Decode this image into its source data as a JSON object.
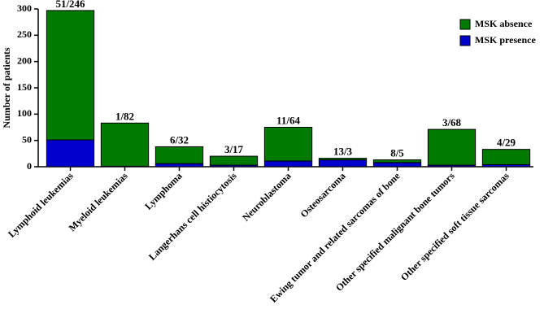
{
  "chart_data": {
    "type": "stacked-bar",
    "y_label": "Number of patients",
    "categories": [
      "Lymphoid leukemias",
      "Myeloid leukemias",
      "Lymphoma",
      "Langerhans cell histiocytosis",
      "Neuroblastoma",
      "Osteosarcoma",
      "Ewing tumor and related sarcomas of bone",
      "Other specified malignant bone tumors",
      "Other specified soft tissue sarcomas"
    ],
    "series": [
      {
        "name": "MSK presence",
        "color": "#0000cc",
        "values": [
          51,
          1,
          6,
          3,
          11,
          13,
          8,
          3,
          4
        ]
      },
      {
        "name": "MSK absence",
        "color": "#007a00",
        "values": [
          246,
          82,
          32,
          17,
          64,
          3,
          5,
          68,
          29
        ]
      }
    ],
    "stack_labels": [
      "51/246",
      "1/82",
      "6/32",
      "3/17",
      "11/64",
      "13/3",
      "8/5",
      "3/68",
      "4/29"
    ],
    "ylim": [
      0,
      300
    ],
    "yticks": [
      0,
      50,
      100,
      150,
      200,
      250,
      300
    ]
  }
}
